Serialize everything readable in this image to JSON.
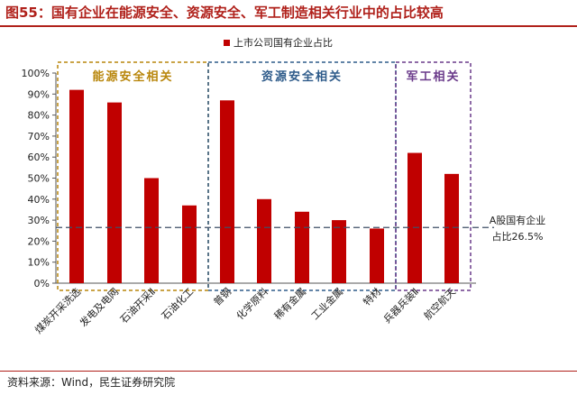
{
  "title": "图55：国有企业在能源安全、资源安全、军工制造相关行业中的占比较高",
  "source": "资料来源：Wind，民生证券研究院",
  "colors": {
    "bar": "#c00000",
    "title": "#b0211b",
    "energy_box": "#b8860b",
    "resource_box": "#2e5b8a",
    "military_box": "#6a3a8a",
    "reference_line": "#3f4f66"
  },
  "chart_data": {
    "type": "bar",
    "legend": "上市公司国有企业占比",
    "categories": [
      "煤炭开采洗选",
      "发电及电网",
      "石油开采Ⅱ",
      "石油化工",
      "普钢",
      "化学原料",
      "稀有金属",
      "工业金属",
      "特材",
      "兵器兵装Ⅱ",
      "航空航天"
    ],
    "series": [
      {
        "name": "上市公司国有企业占比",
        "values": [
          92,
          86,
          50,
          37,
          87,
          40,
          34,
          30,
          26,
          62,
          52
        ]
      }
    ],
    "ylim": [
      0,
      100
    ],
    "yticks": [
      "0%",
      "10%",
      "20%",
      "30%",
      "40%",
      "50%",
      "60%",
      "70%",
      "80%",
      "90%",
      "100%"
    ],
    "reference": {
      "value": 26.5,
      "label_line1": "A股国有企业",
      "label_line2": "占比26.5%"
    },
    "groups": [
      {
        "label": "能源安全相关",
        "start": 0,
        "end": 3,
        "color_key": "energy_box"
      },
      {
        "label": "资源安全相关",
        "start": 4,
        "end": 8,
        "color_key": "resource_box"
      },
      {
        "label": "军工相关",
        "start": 9,
        "end": 10,
        "color_key": "military_box"
      }
    ]
  }
}
